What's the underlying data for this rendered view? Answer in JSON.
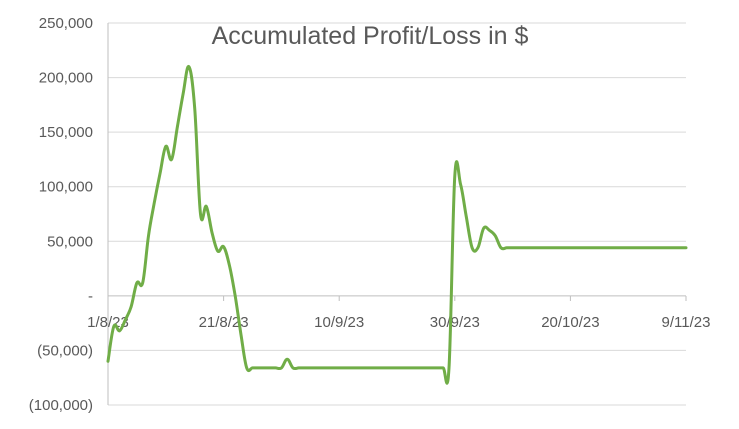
{
  "chart_data": {
    "type": "line",
    "title": "Accumulated Profit/Loss in $",
    "xlabel": "",
    "ylabel": "",
    "x_ticks": [
      "1/8/23",
      "21/8/23",
      "10/9/23",
      "30/9/23",
      "20/10/23",
      "9/11/23"
    ],
    "y_ticks": [
      "250,000",
      "200,000",
      "150,000",
      "100,000",
      "50,000",
      "-",
      "(50,000)",
      "(100,000)"
    ],
    "ylim": [
      -100000,
      250000
    ],
    "grid": true,
    "legend": "none",
    "line_color": "#70ad47",
    "series": [
      {
        "x": [
          "2023-08-01",
          "2023-08-02",
          "2023-08-03",
          "2023-08-04",
          "2023-08-05",
          "2023-08-06",
          "2023-08-07",
          "2023-08-08",
          "2023-08-09",
          "2023-08-10",
          "2023-08-11",
          "2023-08-12",
          "2023-08-13",
          "2023-08-14",
          "2023-08-15",
          "2023-08-16",
          "2023-08-17",
          "2023-08-18",
          "2023-08-19",
          "2023-08-20",
          "2023-08-21",
          "2023-08-22",
          "2023-08-23",
          "2023-08-24",
          "2023-08-25",
          "2023-08-26",
          "2023-08-27",
          "2023-08-28",
          "2023-08-29",
          "2023-08-30",
          "2023-08-31",
          "2023-09-01",
          "2023-09-02",
          "2023-09-03",
          "2023-09-04",
          "2023-09-05",
          "2023-09-06",
          "2023-09-07",
          "2023-09-08",
          "2023-09-09",
          "2023-09-10",
          "2023-09-11",
          "2023-09-12",
          "2023-09-13",
          "2023-09-14",
          "2023-09-15",
          "2023-09-16",
          "2023-09-17",
          "2023-09-18",
          "2023-09-19",
          "2023-09-20",
          "2023-09-21",
          "2023-09-22",
          "2023-09-23",
          "2023-09-24",
          "2023-09-25",
          "2023-09-26",
          "2023-09-27",
          "2023-09-28",
          "2023-09-29",
          "2023-09-30",
          "2023-10-01",
          "2023-10-02",
          "2023-10-03",
          "2023-10-04",
          "2023-10-05",
          "2023-10-06",
          "2023-10-07",
          "2023-10-08",
          "2023-10-09",
          "2023-10-10",
          "2023-10-11",
          "2023-10-12",
          "2023-10-13",
          "2023-10-14",
          "2023-10-15",
          "2023-10-20",
          "2023-10-25",
          "2023-10-30",
          "2023-11-04",
          "2023-11-09"
        ],
        "values": [
          -60000,
          -28000,
          -32000,
          -22000,
          -10000,
          12000,
          12000,
          55000,
          85000,
          112000,
          137000,
          125000,
          155000,
          185000,
          210000,
          172000,
          75000,
          82000,
          58000,
          41000,
          45000,
          28000,
          0,
          -35000,
          -66000,
          -66000,
          -66000,
          -66000,
          -66000,
          -66000,
          -66000,
          -58000,
          -66000,
          -66000,
          -66000,
          -66000,
          -66000,
          -66000,
          -66000,
          -66000,
          -66000,
          -66000,
          -66000,
          -66000,
          -66000,
          -66000,
          -66000,
          -66000,
          -66000,
          -66000,
          -66000,
          -66000,
          -66000,
          -66000,
          -66000,
          -66000,
          -66000,
          -66000,
          -66000,
          -66000,
          110000,
          102000,
          72000,
          44000,
          44000,
          62000,
          60000,
          55000,
          44000,
          44000,
          44000,
          44000,
          44000,
          44000,
          44000,
          44000,
          44000,
          44000,
          44000,
          44000,
          44000
        ]
      }
    ]
  }
}
